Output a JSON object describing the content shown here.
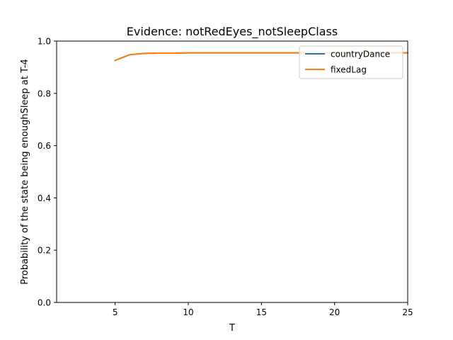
{
  "chart_data": {
    "type": "line",
    "title": "Evidence: notRedEyes_notSleepClass",
    "xlabel": "T",
    "ylabel": "Probability of the state being enoughSleep at T-4",
    "xlim": [
      1,
      25
    ],
    "ylim": [
      0.0,
      1.0
    ],
    "xticks": [
      5,
      10,
      15,
      20,
      25
    ],
    "yticks": [
      0.0,
      0.2,
      0.4,
      0.6,
      0.8,
      1.0
    ],
    "xtick_labels": [
      "5",
      "10",
      "15",
      "20",
      "25"
    ],
    "ytick_labels": [
      "0.0",
      "0.2",
      "0.4",
      "0.6",
      "0.8",
      "1.0"
    ],
    "grid": false,
    "legend": "top-right",
    "series": [
      {
        "name": "countryDance",
        "color": "#1f77b4",
        "x": [
          5,
          6,
          7,
          8,
          9,
          10,
          11,
          12,
          13,
          14,
          15,
          16,
          17,
          18,
          19,
          20,
          21,
          22,
          23,
          24,
          25
        ],
        "values": [
          0.926,
          0.948,
          0.953,
          0.954,
          0.954,
          0.955,
          0.955,
          0.955,
          0.955,
          0.955,
          0.955,
          0.955,
          0.955,
          0.955,
          0.955,
          0.955,
          0.955,
          0.955,
          0.955,
          0.955,
          0.955
        ]
      },
      {
        "name": "fixedLag",
        "color": "#ff7f0e",
        "x": [
          5,
          6,
          7,
          8,
          9,
          10,
          11,
          12,
          13,
          14,
          15,
          16,
          17,
          18,
          19,
          20,
          21,
          22,
          23,
          24,
          25
        ],
        "values": [
          0.926,
          0.948,
          0.953,
          0.954,
          0.954,
          0.955,
          0.955,
          0.955,
          0.955,
          0.955,
          0.955,
          0.955,
          0.955,
          0.955,
          0.955,
          0.955,
          0.955,
          0.955,
          0.955,
          0.955,
          0.955
        ]
      }
    ]
  }
}
